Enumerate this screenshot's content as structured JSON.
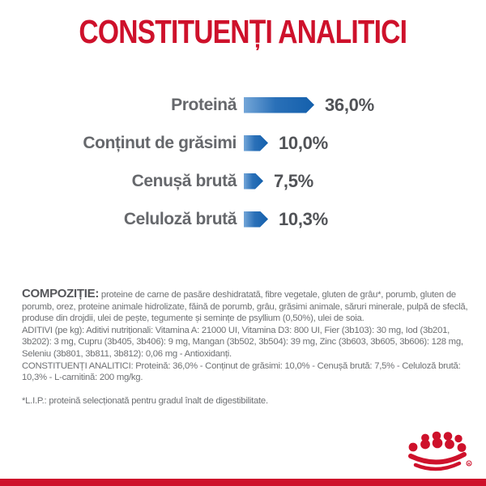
{
  "page": {
    "title": "CONSTITUENȚI ANALITICI"
  },
  "colors": {
    "brand_red": "#CE112B",
    "bar_blue_dark": "#1460AC",
    "label_gray": "#66686C",
    "value_gray": "#515357",
    "body_gray": "#6E7073"
  },
  "chart_data": {
    "type": "bar",
    "orientation": "horizontal",
    "title": "CONSTITUENȚI ANALITICI",
    "unit": "%",
    "bar_style": "arrow",
    "legend": "none",
    "axes": "none",
    "categories": [
      "Proteină",
      "Conținut de grăsimi",
      "Cenușă brută",
      "Celuloză brută"
    ],
    "values": [
      36.0,
      10.0,
      7.5,
      10.3
    ],
    "value_labels": [
      "36,0%",
      "10,0%",
      "7,5%",
      "10,3%"
    ]
  },
  "composition": {
    "heading": "COMPOZIȚIE:",
    "text": " proteine de carne de pasăre deshidratată, fibre vegetale, gluten de grâu*, porumb, gluten de porumb, orez, proteine animale hidrolizate, făină de porumb, grâu, grăsimi animale, săruri minerale, pulpă de sfeclă, produse din drojdii, ulei de pește, tegumente și semințe de psyllium (0,50%), ulei de soia."
  },
  "additives": {
    "text": "ADITIVI (pe kg): Aditivi nutriționali: Vitamina A: 21000 UI, Vitamina D3: 800 UI, Fier (3b103): 30 mg, Iod (3b201, 3b202): 3 mg, Cupru (3b405, 3b406): 9 mg, Mangan (3b502, 3b504): 39 mg, Zinc (3b603, 3b605, 3b606): 128 mg, Seleniu (3b801, 3b811, 3b812): 0,06 mg - Antioxidanți."
  },
  "analytical": {
    "text": "CONSTITUENȚI ANALITICI: Proteină: 36,0% - Conținut de grăsimi: 10,0% - Cenușă brută: 7,5% - Celuloză brută: 10,3% - L-carnitină: 200 mg/kg."
  },
  "footnote": "*L.I.P.: proteină selecționată pentru gradul înalt de digestibilitate.",
  "logo": "royal-canin-crown"
}
